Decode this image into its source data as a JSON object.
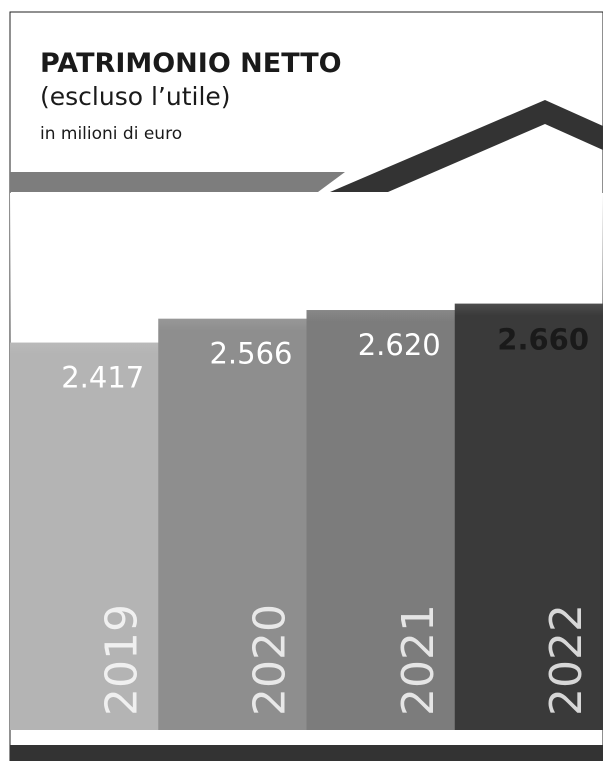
{
  "chart_data": {
    "type": "bar",
    "title": "PATRIMONIO NETTO",
    "subtitle": "(escluso l’utile)",
    "unit_note": "in milioni di euro",
    "categories": [
      "2019",
      "2020",
      "2021",
      "2022"
    ],
    "values": [
      2417,
      2566,
      2620,
      2660
    ],
    "value_labels": [
      "2.417",
      "2.566",
      "2.620",
      "2.660"
    ],
    "colors": [
      "#b4b4b4",
      "#8e8e8e",
      "#7c7c7c",
      "#3a3a3a"
    ],
    "label_colors": [
      "#ffffff",
      "#ffffff",
      "#ffffff",
      "#1a1a1a"
    ],
    "ylim": [
      0,
      3350
    ]
  }
}
